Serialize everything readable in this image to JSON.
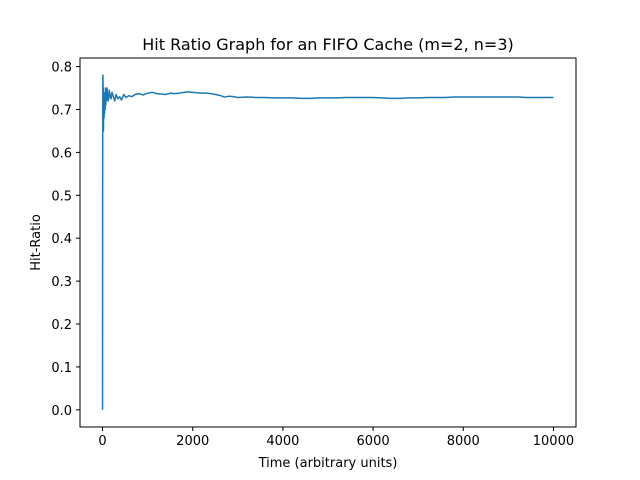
{
  "chart_data": {
    "type": "line",
    "title": "Hit Ratio Graph for an FIFO Cache (m=2, n=3)",
    "xlabel": "Time (arbitrary units)",
    "ylabel": "Hit-Ratio",
    "xlim": [
      -500,
      10500
    ],
    "ylim": [
      -0.04,
      0.82
    ],
    "xticks": [
      0,
      2000,
      4000,
      6000,
      8000,
      10000
    ],
    "xtick_labels": [
      "0",
      "2000",
      "4000",
      "6000",
      "8000",
      "10000"
    ],
    "yticks": [
      0.0,
      0.1,
      0.2,
      0.3,
      0.4,
      0.5,
      0.6,
      0.7,
      0.8
    ],
    "ytick_labels": [
      "0.0",
      "0.1",
      "0.2",
      "0.3",
      "0.4",
      "0.5",
      "0.6",
      "0.7",
      "0.8"
    ],
    "grid": false,
    "line_color": "#1f77b4",
    "series": [
      {
        "x": [
          0,
          2,
          4,
          6,
          8,
          10,
          13,
          16,
          20,
          24,
          28,
          33,
          38,
          44,
          50,
          57,
          64,
          72,
          80,
          90,
          100,
          115,
          130,
          150,
          170,
          190,
          210,
          240,
          270,
          300,
          340,
          380,
          420,
          470,
          520,
          580,
          650,
          720,
          800,
          900,
          1000,
          1100,
          1200,
          1300,
          1400,
          1500,
          1600,
          1700,
          1800,
          1900,
          2000,
          2100,
          2200,
          2300,
          2400,
          2500,
          2600,
          2700,
          2800,
          2900,
          3000,
          3200,
          3400,
          3600,
          3800,
          4000,
          4200,
          4400,
          4600,
          4800,
          5000,
          5200,
          5400,
          5600,
          5800,
          6000,
          6200,
          6400,
          6600,
          6800,
          7000,
          7200,
          7400,
          7600,
          7800,
          8000,
          8200,
          8400,
          8600,
          8800,
          9000,
          9200,
          9400,
          9600,
          9800,
          10000
        ],
        "y": [
          0.0,
          0.5,
          0.67,
          0.75,
          0.78,
          0.77,
          0.72,
          0.75,
          0.65,
          0.7,
          0.74,
          0.68,
          0.72,
          0.69,
          0.73,
          0.7,
          0.75,
          0.71,
          0.74,
          0.72,
          0.75,
          0.73,
          0.72,
          0.745,
          0.73,
          0.725,
          0.74,
          0.73,
          0.72,
          0.735,
          0.725,
          0.73,
          0.722,
          0.735,
          0.728,
          0.732,
          0.73,
          0.735,
          0.737,
          0.734,
          0.738,
          0.74,
          0.737,
          0.736,
          0.735,
          0.738,
          0.737,
          0.738,
          0.74,
          0.741,
          0.74,
          0.739,
          0.738,
          0.738,
          0.737,
          0.735,
          0.733,
          0.729,
          0.731,
          0.73,
          0.728,
          0.729,
          0.728,
          0.728,
          0.727,
          0.727,
          0.727,
          0.726,
          0.726,
          0.727,
          0.727,
          0.727,
          0.728,
          0.728,
          0.728,
          0.728,
          0.727,
          0.726,
          0.726,
          0.727,
          0.727,
          0.728,
          0.728,
          0.728,
          0.729,
          0.729,
          0.729,
          0.729,
          0.729,
          0.729,
          0.729,
          0.729,
          0.728,
          0.728,
          0.728,
          0.728
        ]
      }
    ]
  }
}
